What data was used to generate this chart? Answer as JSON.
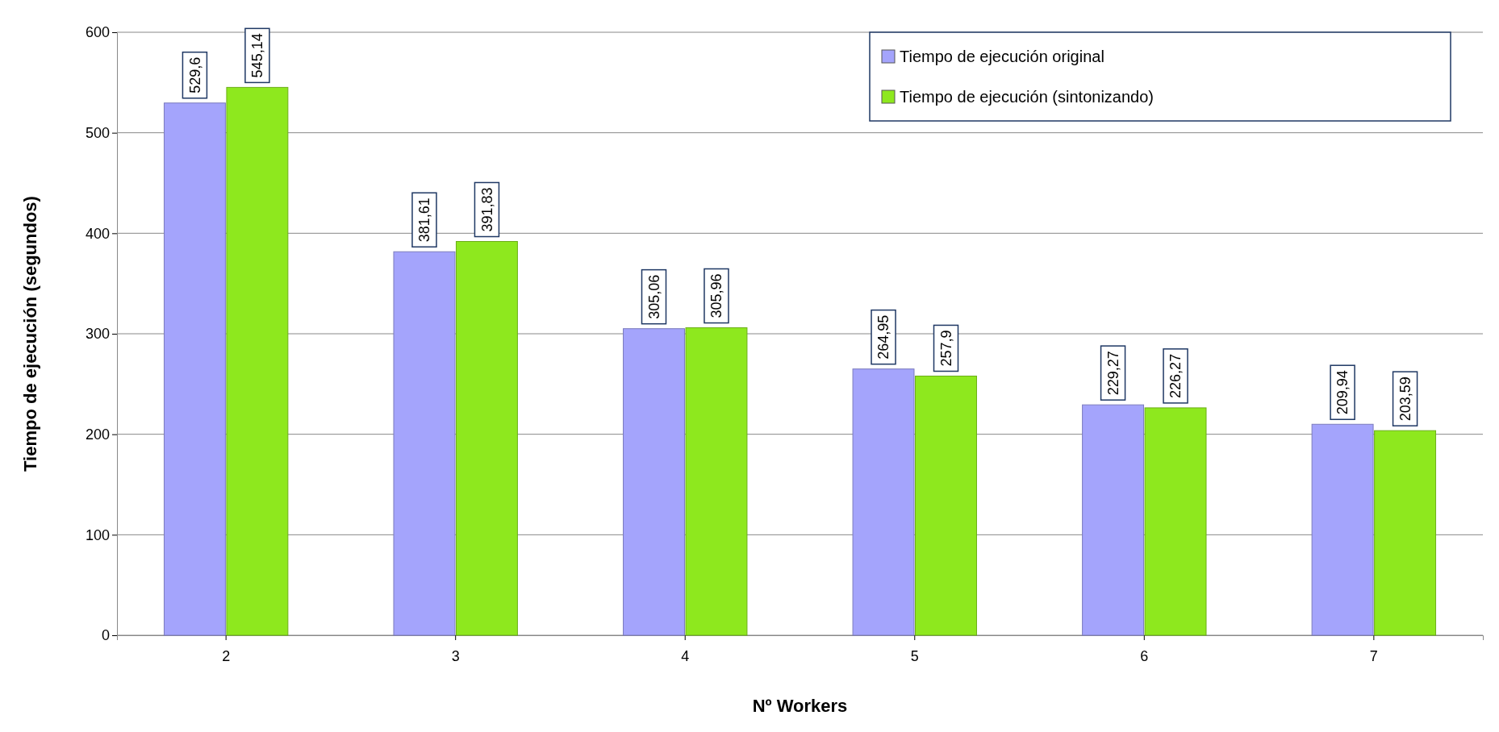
{
  "chart_data": {
    "type": "bar",
    "xlabel": "Nº Workers",
    "ylabel": "Tiempo  de ejecución (segundos)",
    "categories": [
      "2",
      "3",
      "4",
      "5",
      "6",
      "7"
    ],
    "series": [
      {
        "name": "Tiempo de ejecución original",
        "color": "#a4a4fc",
        "values": [
          529.6,
          381.61,
          305.06,
          264.95,
          229.27,
          209.94
        ],
        "value_labels": [
          "529,6",
          "381,61",
          "305,06",
          "264,95",
          "229,27",
          "209,94"
        ]
      },
      {
        "name": "Tiempo de ejecución (sintonizando)",
        "color": "#8ee81e",
        "values": [
          545.14,
          391.83,
          305.96,
          257.9,
          226.27,
          203.59
        ],
        "value_labels": [
          "545,14",
          "391,83",
          "305,96",
          "257,9",
          "226,27",
          "203,59"
        ]
      }
    ],
    "ylim": [
      0,
      600
    ],
    "yticks": [
      0,
      100,
      200,
      300,
      400,
      500,
      600
    ],
    "grid": "y",
    "legend": "top right"
  }
}
